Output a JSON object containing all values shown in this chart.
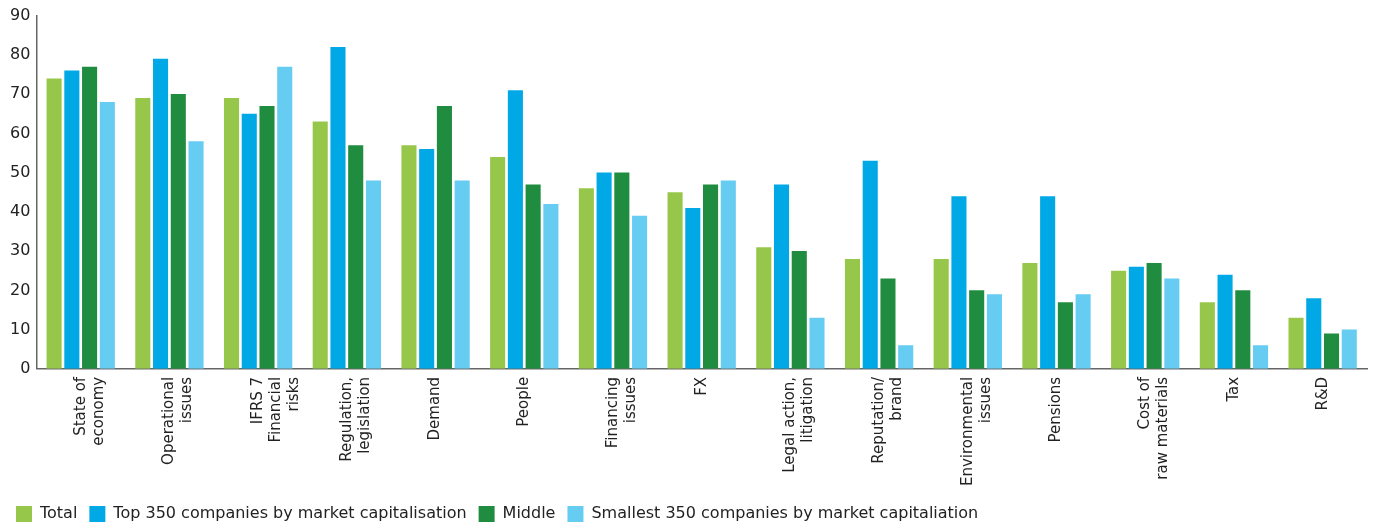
{
  "chart_data": {
    "type": "bar",
    "categories": [
      "State of\neconomy",
      "Operational\nissues",
      "IFRS 7\nFinancial\nrisks",
      "Regulation,\nlegislation",
      "Demand",
      "People",
      "Financing\nissues",
      "FX",
      "Legal action,\nlitigation",
      "Reputation/\nbrand",
      "Environmental\nissues",
      "Pensions",
      "Cost of\nraw materials",
      "Tax",
      "R&D"
    ],
    "series": [
      {
        "name": "Total",
        "color": "#97c74a",
        "values": [
          74,
          69,
          69,
          63,
          57,
          54,
          46,
          45,
          31,
          28,
          28,
          27,
          25,
          17,
          13
        ]
      },
      {
        "name": "Top 350 companies by market capitalisation",
        "color": "#00a9e6",
        "values": [
          76,
          79,
          65,
          82,
          56,
          71,
          50,
          41,
          47,
          53,
          44,
          44,
          26,
          24,
          18
        ]
      },
      {
        "name": "Middle",
        "color": "#208c3f",
        "values": [
          77,
          70,
          67,
          57,
          67,
          47,
          50,
          47,
          30,
          23,
          20,
          17,
          27,
          20,
          9
        ]
      },
      {
        "name": "Smallest 350 companies by market capitaliation",
        "color": "#66ccf2",
        "values": [
          68,
          58,
          77,
          48,
          48,
          42,
          39,
          48,
          13,
          6,
          19,
          19,
          23,
          6,
          10
        ]
      }
    ],
    "ylim": [
      0,
      90
    ],
    "yticks": [
      0,
      10,
      20,
      30,
      40,
      50,
      60,
      70,
      80,
      90
    ],
    "grid": false,
    "legend": "bottom left"
  }
}
